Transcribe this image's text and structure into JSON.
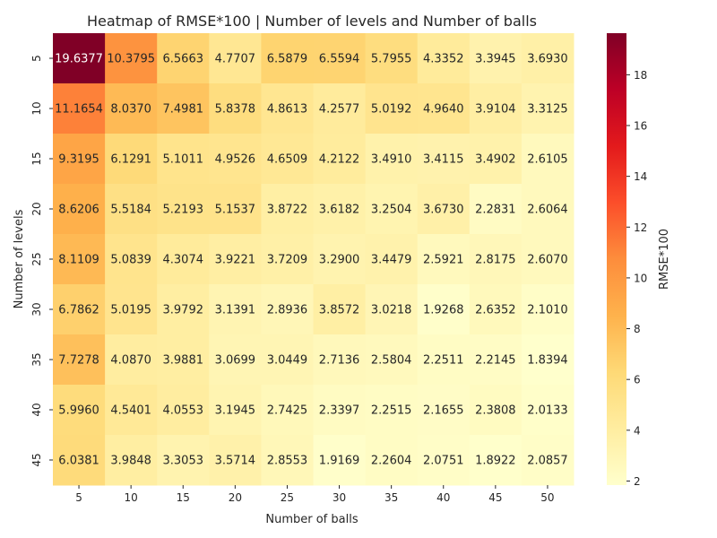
{
  "chart_data": {
    "type": "heatmap",
    "title": "Heatmap of RMSE*100 | Number of levels and Number of balls",
    "xlabel": "Number of balls",
    "ylabel": "Number of levels",
    "x_categories": [
      "5",
      "10",
      "15",
      "20",
      "25",
      "30",
      "35",
      "40",
      "45",
      "50"
    ],
    "y_categories": [
      "5",
      "10",
      "15",
      "20",
      "25",
      "30",
      "35",
      "40",
      "45"
    ],
    "values": [
      [
        "19.6377",
        "10.3795",
        "6.5663",
        "4.7707",
        "6.5879",
        "6.5594",
        "5.7955",
        "4.3352",
        "3.3945",
        "3.6930"
      ],
      [
        "11.1654",
        "8.0370",
        "7.4981",
        "5.8378",
        "4.8613",
        "4.2577",
        "5.0192",
        "4.9640",
        "3.9104",
        "3.3125"
      ],
      [
        "9.3195",
        "6.1291",
        "5.1011",
        "4.9526",
        "4.6509",
        "4.2122",
        "3.4910",
        "3.4115",
        "3.4902",
        "2.6105"
      ],
      [
        "8.6206",
        "5.5184",
        "5.2193",
        "5.1537",
        "3.8722",
        "3.6182",
        "3.2504",
        "3.6730",
        "2.2831",
        "2.6064"
      ],
      [
        "8.1109",
        "5.0839",
        "4.3074",
        "3.9221",
        "3.7209",
        "3.2900",
        "3.4479",
        "2.5921",
        "2.8175",
        "2.6070"
      ],
      [
        "6.7862",
        "5.0195",
        "3.9792",
        "3.1391",
        "2.8936",
        "3.8572",
        "3.0218",
        "1.9268",
        "2.6352",
        "2.1010"
      ],
      [
        "7.7278",
        "4.0870",
        "3.9881",
        "3.0699",
        "3.0449",
        "2.7136",
        "2.5804",
        "2.2511",
        "2.2145",
        "1.8394"
      ],
      [
        "5.9960",
        "4.5401",
        "4.0553",
        "3.1945",
        "2.7425",
        "2.3397",
        "2.2515",
        "2.1655",
        "2.3808",
        "2.0133"
      ],
      [
        "6.0381",
        "3.9848",
        "3.3053",
        "3.5714",
        "2.8553",
        "1.9169",
        "2.2604",
        "2.0751",
        "1.8922",
        "2.0857"
      ]
    ],
    "colorbar": {
      "label": "RMSE*100",
      "ticks": [
        "2",
        "4",
        "6",
        "8",
        "10",
        "12",
        "14",
        "16",
        "18"
      ],
      "vmin": 1.8394,
      "vmax": 19.6377,
      "colormap": "YlOrRd"
    }
  }
}
